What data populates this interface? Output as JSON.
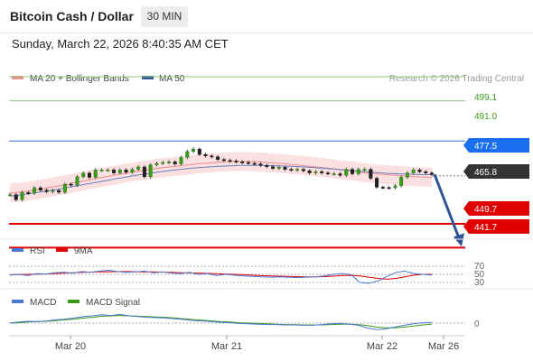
{
  "header": {
    "title": "Bitcoin Cash / Dollar",
    "timeframe": "30 MIN",
    "datetime": "Sunday, March 22, 2026 8:40:35 AM CET"
  },
  "legend": {
    "ma20_label": "MA 20 + Bollinger Bands",
    "ma50_label": "MA 50",
    "ma20_color": "#f08c8c",
    "ma50_color": "#2f5597",
    "credit": "Research © 2026 Trading Central"
  },
  "rsi_legend": {
    "rsi_label": "RSI",
    "ma_label": "9MA",
    "rsi_color": "#4a78d4",
    "ma_color": "#e00000"
  },
  "macd_legend": {
    "macd_label": "MACD",
    "signal_label": "MACD Signal",
    "macd_color": "#4a78d4",
    "signal_color": "#3a9a1a"
  },
  "chart_data": [
    {
      "type": "line",
      "name": "price",
      "x_ticks": [
        "Mar 20",
        "Mar 21",
        "Mar 22",
        "Mar 26"
      ],
      "ylim": [
        435,
        505
      ],
      "levels": [
        {
          "value": 499.1,
          "label": "499.1",
          "kind": "resistance"
        },
        {
          "value": 491.0,
          "label": "491.0",
          "kind": "resistance"
        },
        {
          "value": 477.5,
          "label": "477.5",
          "kind": "pivot"
        },
        {
          "value": 465.8,
          "label": "465.8",
          "kind": "last"
        },
        {
          "value": 449.7,
          "label": "449.7",
          "kind": "support"
        },
        {
          "value": 441.7,
          "label": "441.7",
          "kind": "support"
        }
      ],
      "price_series": [
        459.5,
        457.8,
        460.2,
        460.0,
        461.8,
        461.0,
        460.5,
        460.9,
        460.3,
        463.0,
        462.7,
        465.5,
        466.7,
        465.3,
        467.8,
        467.8,
        467.8,
        466.8,
        467.8,
        467.0,
        468.0,
        468.8,
        465.5,
        469.5,
        470.0,
        470.3,
        470.5,
        469.8,
        472.0,
        474.0,
        474.8,
        473.0,
        472.5,
        472.2,
        471.3,
        471.0,
        470.8,
        470.5,
        470.3,
        470.0,
        469.8,
        469.3,
        468.9,
        468.3,
        468.7,
        468.0,
        467.8,
        468.0,
        467.5,
        466.8,
        467.2,
        466.8,
        466.5,
        466.5,
        466.0,
        468.0,
        466.5,
        468.0,
        468.0,
        465.0,
        462.0,
        461.9,
        461.8,
        462.5,
        465.4,
        466.8,
        467.8,
        467.2,
        466.8,
        466.3
      ],
      "ma20": [
        460.0,
        460.3,
        460.6,
        461.0,
        461.5,
        462.0,
        462.5,
        463.0,
        463.6,
        464.1,
        464.7,
        465.2,
        465.7,
        466.2,
        466.7,
        467.2,
        467.6,
        468.0,
        468.4,
        468.7,
        469.0,
        469.3,
        469.6,
        469.9,
        470.1,
        470.3,
        470.5,
        470.6,
        470.6,
        470.6,
        470.5,
        470.3,
        470.1,
        469.9,
        469.6,
        469.4,
        469.1,
        468.8,
        468.5,
        468.2,
        467.8,
        467.5,
        467.2,
        466.8,
        466.6,
        466.3,
        466.1,
        465.9,
        465.7,
        465.5,
        465.4,
        465.3
      ],
      "ma50": [
        459.0,
        459.3,
        459.7,
        460.1,
        460.5,
        461.0,
        461.4,
        461.9,
        462.4,
        462.9,
        463.4,
        463.9,
        464.4,
        464.9,
        465.4,
        465.9,
        466.3,
        466.7,
        467.1,
        467.5,
        467.8,
        468.1,
        468.4,
        468.6,
        468.8,
        469.0,
        469.1,
        469.2,
        469.3,
        469.3,
        469.3,
        469.3,
        469.2,
        469.1,
        469.0,
        468.9,
        468.7,
        468.5,
        468.3,
        468.1,
        467.9,
        467.7,
        467.4,
        467.2,
        467.0,
        466.8,
        466.6,
        466.5,
        466.4,
        466.3,
        466.2,
        466.2
      ],
      "forecast_target": 441.7
    },
    {
      "type": "line",
      "name": "rsi",
      "ylim": [
        20,
        80
      ],
      "levels": [
        {
          "value": 70,
          "label": "70"
        },
        {
          "value": 50,
          "label": "50"
        },
        {
          "value": 30,
          "label": "30"
        }
      ],
      "rsi": [
        48,
        50,
        47,
        52,
        51,
        54,
        55,
        53,
        57,
        55,
        58,
        60,
        57,
        55,
        56,
        58,
        54,
        56,
        53,
        52,
        55,
        50,
        52,
        47,
        50,
        48,
        46,
        45,
        44,
        43,
        44,
        43,
        42,
        43,
        44,
        46,
        50,
        52,
        49,
        30,
        28,
        34,
        45,
        55,
        58,
        52,
        50,
        48
      ],
      "rsi_ma": [
        49,
        49.5,
        50,
        50.5,
        51,
        52,
        53,
        54,
        55,
        55.5,
        56,
        56.5,
        57,
        57,
        56.5,
        56,
        56,
        55.5,
        55,
        54,
        53.5,
        53,
        52.5,
        51.5,
        51,
        50,
        49,
        48,
        47,
        46,
        45.5,
        45,
        44.5,
        44,
        44,
        44.5,
        45.5,
        47,
        47.5,
        46,
        43,
        40,
        38,
        40,
        44,
        48,
        50,
        50
      ]
    },
    {
      "type": "line",
      "name": "macd",
      "levels": [
        {
          "value": 0,
          "label": "0"
        }
      ],
      "macd": [
        0,
        0.3,
        0.5,
        0.4,
        0.6,
        0.9,
        1.1,
        1.4,
        1.8,
        2.0,
        2.3,
        2.1,
        2.4,
        2.0,
        1.8,
        1.6,
        1.5,
        1.4,
        1.2,
        1.0,
        0.7,
        0.6,
        0.4,
        0.2,
        0.1,
        -0.1,
        -0.2,
        -0.3,
        -0.4,
        -0.4,
        -0.5,
        -0.5,
        -0.6,
        -0.6,
        -0.4,
        -0.2,
        -0.1,
        -0.3,
        -0.6,
        -1.4,
        -1.8,
        -1.6,
        -1.1,
        -0.6,
        -0.2,
        0.1,
        0.2
      ],
      "signal": [
        0,
        0.1,
        0.3,
        0.4,
        0.5,
        0.7,
        0.9,
        1.1,
        1.4,
        1.6,
        1.9,
        2.0,
        2.1,
        2.0,
        1.9,
        1.8,
        1.7,
        1.6,
        1.4,
        1.2,
        1.0,
        0.8,
        0.6,
        0.4,
        0.3,
        0.1,
        0.0,
        -0.1,
        -0.2,
        -0.3,
        -0.4,
        -0.4,
        -0.5,
        -0.5,
        -0.5,
        -0.4,
        -0.3,
        -0.3,
        -0.4,
        -0.7,
        -1.1,
        -1.3,
        -1.3,
        -1.1,
        -0.8,
        -0.5,
        -0.3
      ]
    }
  ]
}
